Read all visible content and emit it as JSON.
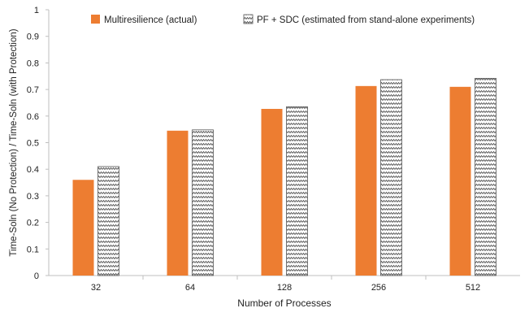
{
  "chart_data": {
    "type": "bar",
    "title": "",
    "xlabel": "Number of Processes",
    "ylabel": "Time-Soln (No Protection) / Time-Soln (with Protection)",
    "categories": [
      "32",
      "64",
      "128",
      "256",
      "512"
    ],
    "ylim": [
      0,
      1
    ],
    "yticks": [
      "0",
      "0.1",
      "0.2",
      "0.3",
      "0.4",
      "0.5",
      "0.6",
      "0.7",
      "0.8",
      "0.9",
      "1"
    ],
    "grid": false,
    "legend_position": "top",
    "series": [
      {
        "name": "Multiresilience (actual)",
        "values": [
          0.36,
          0.545,
          0.627,
          0.713,
          0.71
        ],
        "color": "#ED7D31",
        "pattern": "solid"
      },
      {
        "name": "PF + SDC (estimated from stand-alone experiments)",
        "values": [
          0.41,
          0.548,
          0.635,
          0.737,
          0.742
        ],
        "color": "#555555",
        "pattern": "zigzag"
      }
    ]
  }
}
